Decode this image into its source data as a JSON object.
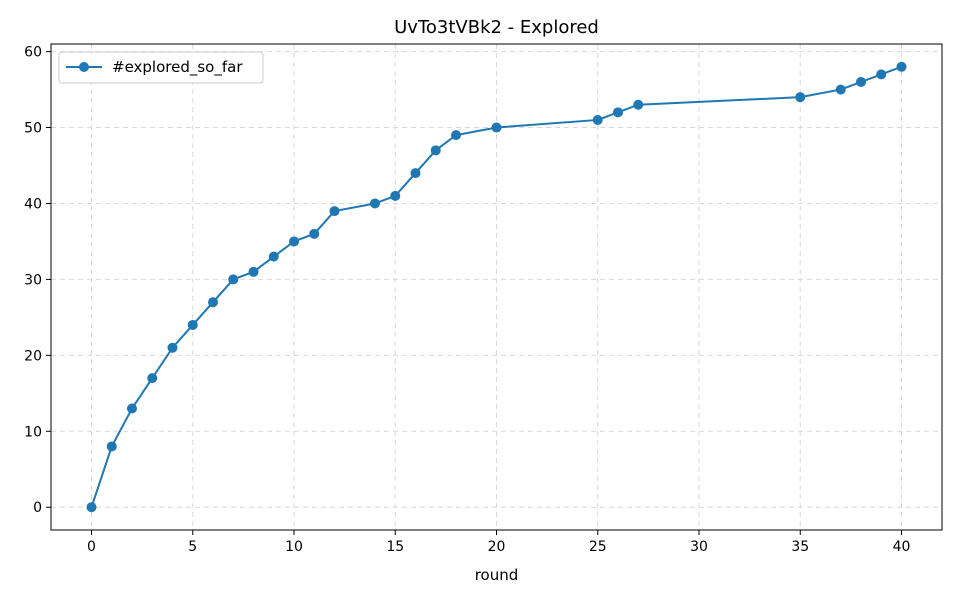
{
  "chart_data": {
    "type": "line",
    "title": "UvTo3tVBk2 - Explored",
    "xlabel": "round",
    "ylabel": "",
    "xlim": [
      -2,
      42
    ],
    "ylim": [
      -3,
      61
    ],
    "xticks": [
      0,
      5,
      10,
      15,
      20,
      25,
      30,
      35,
      40
    ],
    "yticks": [
      0,
      10,
      20,
      30,
      40,
      50,
      60
    ],
    "grid": true,
    "legend": "top-left",
    "colors": {
      "series": "#1f77b4",
      "grid": "#d9d9d9",
      "axis": "#000000"
    },
    "series": [
      {
        "name": "#explored_so_far",
        "marker": "circle",
        "x": [
          0,
          1,
          2,
          3,
          4,
          5,
          6,
          7,
          8,
          9,
          10,
          11,
          12,
          14,
          15,
          16,
          17,
          18,
          20,
          25,
          26,
          27,
          35,
          37,
          38,
          39,
          40
        ],
        "y": [
          0,
          8,
          13,
          17,
          21,
          24,
          27,
          30,
          31,
          33,
          35,
          36,
          39,
          40,
          41,
          44,
          47,
          49,
          50,
          51,
          52,
          53,
          54,
          55,
          56,
          57,
          58
        ]
      }
    ]
  }
}
